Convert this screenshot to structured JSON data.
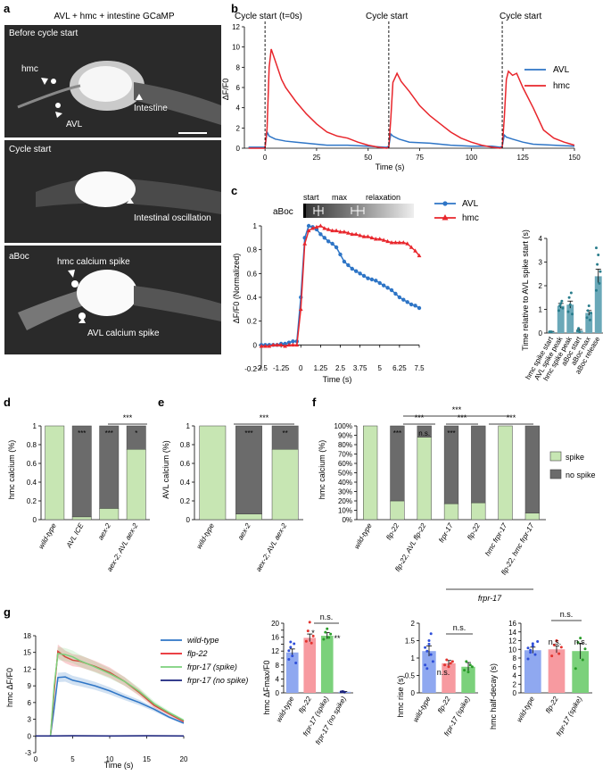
{
  "panels": {
    "a": {
      "letter": "a",
      "title": "AVL + hmc + intestine GCaMP",
      "images": [
        {
          "caption": "Before cycle start",
          "labels": [
            "hmc",
            "AVL",
            "Intestine"
          ]
        },
        {
          "caption": "Cycle start",
          "labels": [
            "Intestinal oscillation"
          ]
        },
        {
          "caption": "aBoc",
          "labels": [
            "hmc calcium spike",
            "AVL calcium spike"
          ]
        }
      ]
    },
    "b": {
      "letter": "b",
      "cycle_labels": [
        "Cycle start (t=0s)",
        "Cycle start",
        "Cycle start"
      ],
      "ylabel": "ΔF/F0",
      "xlabel": "Time (s)",
      "legend": [
        "AVL",
        "hmc"
      ]
    },
    "c": {
      "letter": "c",
      "aboc_label": "aBoc",
      "phase_labels": [
        "start",
        "max",
        "relaxation"
      ],
      "ylabel": "ΔF/F0 (Normalized)",
      "xlabel": "Time (s)",
      "legend": [
        "AVL",
        "hmc"
      ],
      "bar_ylabel": "Time relative to AVL spike start (s)"
    },
    "d": {
      "letter": "d",
      "ylabel": "hmc calcium (%)",
      "sig": [
        "***",
        "***",
        "*",
        "***"
      ]
    },
    "e": {
      "letter": "e",
      "ylabel": "AVL calcium (%)",
      "sig": [
        "***",
        "**",
        "***"
      ]
    },
    "f": {
      "letter": "f",
      "ylabel": "hmc calcium (%)",
      "sig": [
        "***",
        "***",
        "***",
        "***",
        "n.s.",
        "***",
        "***"
      ],
      "legend": [
        "spike",
        "no spike"
      ],
      "group_label": "frpr-17"
    },
    "g": {
      "letter": "g",
      "ylabel": "hmc ΔF/F0",
      "xlabel": "Time (s)",
      "legend": [
        "wild-type",
        "flp-22",
        "frpr-17 (spike)",
        "frpr-17 (no spike)"
      ],
      "bar1_ylabel": "hmc ΔFmax/F0",
      "bar2_ylabel": "hmc rise (s)",
      "bar3_ylabel": "hmc half-decay (s)",
      "sig": [
        "n.s.",
        "*",
        "**",
        "n.s.",
        "n.s.",
        "n.s.",
        "n.s.",
        "n.s."
      ]
    }
  },
  "colors": {
    "avl": "#2e75c6",
    "hmc": "#e8262c",
    "spike": "#c7e6b3",
    "nospike": "#6b6b6b",
    "wt": "#8fa8f0",
    "flp": "#f79aa0",
    "frpr": "#7bd17b",
    "teal": "#6aa8b8"
  },
  "chart_data": [
    {
      "id": "b",
      "type": "line",
      "title": "",
      "xlabel": "Time (s)",
      "ylabel": "ΔF/F0",
      "xlim": [
        -10,
        150
      ],
      "ylim": [
        0,
        12
      ],
      "xticks": [
        0,
        25,
        50,
        75,
        100,
        125,
        150
      ],
      "yticks": [
        0,
        2,
        4,
        6,
        8,
        10,
        12
      ],
      "cycle_starts": [
        0,
        60,
        115
      ],
      "series": [
        {
          "name": "AVL",
          "x": [
            -8,
            0,
            1,
            2,
            5,
            10,
            15,
            20,
            25,
            30,
            40,
            50,
            58,
            59,
            60,
            61,
            62,
            65,
            70,
            80,
            90,
            100,
            110,
            114,
            115,
            116,
            117,
            120,
            125,
            130,
            140,
            150
          ],
          "y": [
            0.1,
            0.1,
            1.6,
            1.2,
            0.9,
            0.7,
            0.6,
            0.5,
            0.4,
            0.3,
            0.3,
            0.2,
            0.1,
            0.1,
            0.2,
            1.4,
            1.2,
            0.9,
            0.6,
            0.5,
            0.3,
            0.2,
            0.2,
            0.1,
            0.2,
            1.3,
            1.1,
            0.9,
            0.6,
            0.4,
            0.3,
            0.2
          ]
        },
        {
          "name": "hmc",
          "x": [
            -8,
            0,
            1,
            2,
            3,
            5,
            8,
            10,
            15,
            20,
            25,
            30,
            35,
            40,
            45,
            50,
            55,
            59,
            60,
            61,
            62,
            64,
            66,
            70,
            75,
            80,
            85,
            90,
            95,
            100,
            105,
            110,
            114,
            115,
            116,
            117,
            118,
            120,
            122,
            125,
            130,
            135,
            140,
            145,
            150
          ],
          "y": [
            0,
            0,
            2,
            8,
            9.8,
            8.6,
            6.8,
            6.0,
            4.6,
            3.4,
            2.4,
            1.6,
            1.2,
            1.0,
            0.6,
            0.3,
            0.1,
            0,
            0.1,
            3,
            6.5,
            7.4,
            6.6,
            5.6,
            4.2,
            3.2,
            2.4,
            1.6,
            1.0,
            0.6,
            0.3,
            0.1,
            0,
            0.1,
            3,
            6.8,
            7.6,
            7.2,
            7.4,
            6.0,
            4.0,
            1.8,
            1.0,
            0.6,
            0.3
          ]
        }
      ]
    },
    {
      "id": "c-line",
      "type": "line",
      "xlabel": "Time (s)",
      "ylabel": "ΔF/F0 (Normalized)",
      "xlim": [
        -2.5,
        7.5
      ],
      "ylim": [
        -0.2,
        1
      ],
      "xticks": [
        -2.5,
        -1.25,
        0,
        1.25,
        2.5,
        3.75,
        5,
        6.25,
        7.5
      ],
      "yticks": [
        -0.2,
        0,
        0.2,
        0.4,
        0.6,
        0.8,
        1
      ],
      "series": [
        {
          "name": "AVL",
          "x": [
            -2.5,
            -2.25,
            -2,
            -1.75,
            -1.5,
            -1.25,
            -1,
            -0.75,
            -0.5,
            -0.25,
            0,
            0.25,
            0.5,
            0.75,
            1,
            1.25,
            1.5,
            1.75,
            2,
            2.25,
            2.5,
            2.75,
            3,
            3.25,
            3.5,
            3.75,
            4,
            4.25,
            4.5,
            4.75,
            5,
            5.25,
            5.5,
            5.75,
            6,
            6.25,
            6.5,
            6.75,
            7,
            7.25,
            7.5
          ],
          "y": [
            0,
            0,
            0,
            0,
            0,
            0.01,
            0.01,
            0.02,
            0.03,
            0.03,
            0.4,
            0.9,
            1.0,
            0.99,
            0.97,
            0.93,
            0.9,
            0.87,
            0.85,
            0.82,
            0.76,
            0.7,
            0.67,
            0.64,
            0.62,
            0.6,
            0.58,
            0.56,
            0.55,
            0.54,
            0.52,
            0.5,
            0.48,
            0.46,
            0.43,
            0.4,
            0.38,
            0.36,
            0.34,
            0.33,
            0.31
          ]
        },
        {
          "name": "hmc",
          "x": [
            -2.5,
            -2.25,
            -2,
            -1.75,
            -1.5,
            -1.25,
            -1,
            -0.75,
            -0.5,
            -0.25,
            0,
            0.25,
            0.5,
            0.75,
            1,
            1.25,
            1.5,
            1.75,
            2,
            2.25,
            2.5,
            2.75,
            3,
            3.25,
            3.5,
            3.75,
            4,
            4.25,
            4.5,
            4.75,
            5,
            5.25,
            5.5,
            5.75,
            6,
            6.25,
            6.5,
            6.75,
            7,
            7.25,
            7.5
          ],
          "y": [
            -0.01,
            -0.01,
            -0.01,
            0,
            0,
            0,
            -0.01,
            0,
            0,
            0,
            0.3,
            0.85,
            0.96,
            0.98,
            0.99,
            1.0,
            0.98,
            0.97,
            0.96,
            0.96,
            0.95,
            0.95,
            0.94,
            0.93,
            0.93,
            0.92,
            0.91,
            0.91,
            0.9,
            0.89,
            0.89,
            0.88,
            0.87,
            0.86,
            0.86,
            0.86,
            0.86,
            0.85,
            0.82,
            0.79,
            0.75
          ]
        }
      ]
    },
    {
      "id": "c-bar",
      "type": "bar",
      "ylabel": "Time relative to AVL spike start (s)",
      "ylim": [
        0,
        4
      ],
      "yticks": [
        0,
        1,
        2,
        3,
        4
      ],
      "categories": [
        "hmc spike start",
        "AVL spike peak",
        "hmc spike peak",
        "aBoc start",
        "aBoc max",
        "aBoc release"
      ],
      "values": [
        0.05,
        1.15,
        1.2,
        0.1,
        0.85,
        2.4
      ]
    },
    {
      "id": "d",
      "type": "bar",
      "stacked": true,
      "ylabel": "hmc calcium (%)",
      "ylim": [
        0,
        1
      ],
      "yticks": [
        0,
        0.2,
        0.4,
        0.6,
        0.8,
        1
      ],
      "categories": [
        "wild-type",
        "AVL ICE",
        "aex-2",
        "aex-2; AVL aex-2"
      ],
      "series": [
        {
          "name": "spike",
          "values": [
            1.0,
            0.03,
            0.12,
            0.75
          ]
        },
        {
          "name": "no spike",
          "values": [
            0.0,
            0.97,
            0.88,
            0.25
          ]
        }
      ]
    },
    {
      "id": "e",
      "type": "bar",
      "stacked": true,
      "ylabel": "AVL calcium (%)",
      "ylim": [
        0,
        1
      ],
      "yticks": [
        0,
        0.2,
        0.4,
        0.6,
        0.8,
        1
      ],
      "categories": [
        "wild-type",
        "aex-2",
        "aex-2; AVL aex-2"
      ],
      "series": [
        {
          "name": "spike",
          "values": [
            1.0,
            0.06,
            0.75
          ]
        },
        {
          "name": "no spike",
          "values": [
            0.0,
            0.94,
            0.25
          ]
        }
      ]
    },
    {
      "id": "f",
      "type": "bar",
      "stacked": true,
      "ylabel": "hmc calcium (%)",
      "ylim": [
        0,
        100
      ],
      "yticks": [
        "0%",
        "10%",
        "20%",
        "30%",
        "40%",
        "50%",
        "60%",
        "70%",
        "80%",
        "90%",
        "100%"
      ],
      "categories": [
        "wild-type",
        "flp-22",
        "flp-22, AVL flp-22",
        "frpr-17",
        "flp-22",
        "hmc frpr-17",
        "flp-22, hmc frpr-17"
      ],
      "series": [
        {
          "name": "spike",
          "values": [
            100,
            20,
            88,
            17,
            18,
            100,
            7
          ]
        },
        {
          "name": "no spike",
          "values": [
            0,
            80,
            12,
            83,
            82,
            0,
            93
          ]
        }
      ]
    },
    {
      "id": "g-line",
      "type": "line",
      "xlabel": "Time (s)",
      "ylabel": "hmc ΔF/F0",
      "xlim": [
        0,
        20
      ],
      "ylim": [
        -3,
        18
      ],
      "xticks": [
        0,
        5,
        10,
        15,
        20
      ],
      "yticks": [
        -3,
        0,
        3,
        6,
        9,
        12,
        15,
        18
      ],
      "series": [
        {
          "name": "wild-type",
          "x": [
            0,
            1,
            2,
            2.5,
            3,
            4,
            5,
            6,
            8,
            10,
            12,
            14,
            16,
            18,
            20
          ],
          "y": [
            0,
            0,
            0,
            5,
            10.5,
            10.6,
            10,
            9.7,
            9,
            8.1,
            7,
            6,
            4.8,
            3.4,
            2.3
          ]
        },
        {
          "name": "flp-22",
          "x": [
            0,
            1,
            2,
            2.5,
            3,
            4,
            5,
            6,
            8,
            10,
            12,
            14,
            16,
            18,
            20
          ],
          "y": [
            0,
            0,
            0,
            8,
            15.2,
            14.2,
            13.6,
            13.4,
            12.5,
            11.4,
            9.8,
            7.8,
            5.5,
            4,
            2.6
          ]
        },
        {
          "name": "frpr-17 (spike)",
          "x": [
            0,
            1,
            2,
            2.5,
            3,
            4,
            5,
            6,
            8,
            10,
            12,
            14,
            16,
            18,
            20
          ],
          "y": [
            0,
            0,
            0,
            9,
            14.8,
            14.6,
            14.2,
            13.5,
            12.4,
            11.2,
            9.8,
            8,
            5.8,
            4.2,
            2.8
          ]
        },
        {
          "name": "frpr-17 (no spike)",
          "x": [
            0,
            2,
            5,
            10,
            15,
            20
          ],
          "y": [
            0,
            0,
            0.05,
            0,
            0.05,
            0
          ]
        }
      ]
    },
    {
      "id": "g-bar1",
      "type": "bar",
      "ylabel": "hmc ΔFmax/F0",
      "ylim": [
        0,
        20
      ],
      "yticks": [
        0,
        2,
        4,
        6,
        8,
        10,
        12,
        14,
        16,
        18,
        20
      ],
      "categories": [
        "wild-type",
        "flp-22",
        "frpr-17 (spike)",
        "frpr-17 (no spike)"
      ],
      "values": [
        11.6,
        15.8,
        16.4,
        0.3
      ]
    },
    {
      "id": "g-bar2",
      "type": "bar",
      "ylabel": "hmc rise (s)",
      "ylim": [
        0,
        2
      ],
      "yticks": [
        0,
        0.5,
        1,
        1.5,
        2
      ],
      "categories": [
        "wild-type",
        "flp-22",
        "frpr-17 (spike)"
      ],
      "values": [
        1.2,
        0.85,
        0.75
      ]
    },
    {
      "id": "g-bar3",
      "type": "bar",
      "ylabel": "hmc half-decay (s)",
      "ylim": [
        0,
        16
      ],
      "yticks": [
        0,
        2,
        4,
        6,
        8,
        10,
        12,
        14,
        16
      ],
      "categories": [
        "wild-type",
        "flp-22",
        "frpr-17 (spike)"
      ],
      "values": [
        9.8,
        10,
        9.6
      ]
    }
  ]
}
